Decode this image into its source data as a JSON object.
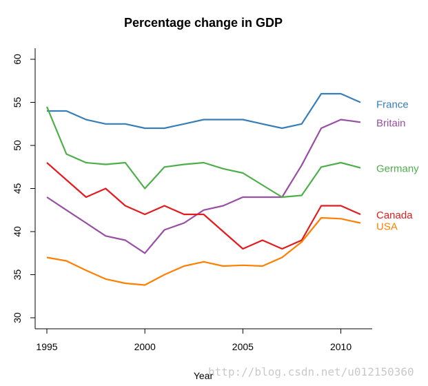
{
  "chart_data": {
    "type": "line",
    "title": "Percentage change in GDP",
    "xlabel": "Year",
    "ylabel": "",
    "xlim": [
      1995,
      2011
    ],
    "ylim": [
      30,
      60
    ],
    "xticks": [
      1995,
      2000,
      2005,
      2010
    ],
    "yticks": [
      30,
      35,
      40,
      45,
      50,
      55,
      60
    ],
    "x": [
      1995,
      1996,
      1997,
      1998,
      1999,
      2000,
      2001,
      2002,
      2003,
      2004,
      2005,
      2006,
      2007,
      2008,
      2009,
      2010,
      2011
    ],
    "series": [
      {
        "name": "France",
        "color": "#377eb8",
        "values": [
          54,
          54,
          53,
          52.5,
          52.5,
          52,
          52,
          52.5,
          53,
          53,
          53,
          52.5,
          52,
          52.5,
          56,
          56,
          55
        ]
      },
      {
        "name": "Britain",
        "color": "#984ea3",
        "values": [
          44,
          42.5,
          41,
          39.5,
          39,
          37.5,
          40.2,
          41,
          42.5,
          43,
          44,
          44,
          44,
          47.7,
          52,
          53,
          52.7
        ]
      },
      {
        "name": "Germany",
        "color": "#4daf4a",
        "values": [
          54.5,
          49,
          48,
          47.8,
          48,
          45,
          47.5,
          47.8,
          48,
          47.3,
          46.8,
          45.4,
          44,
          44.2,
          47.5,
          48,
          47.4
        ]
      },
      {
        "name": "Canada",
        "color": "#e41a1c",
        "values": [
          48,
          46,
          44,
          45,
          43,
          42,
          43,
          42,
          42,
          40,
          38,
          39,
          38,
          39,
          43,
          43,
          42
        ]
      },
      {
        "name": "USA",
        "color": "#ff7f00",
        "values": [
          37,
          36.6,
          35.5,
          34.5,
          34,
          33.8,
          35,
          36,
          36.5,
          36,
          36.1,
          36,
          37,
          38.8,
          41.6,
          41.5,
          41
        ]
      }
    ],
    "labels": [
      "France",
      "Britain",
      "Germany",
      "Canada",
      "USA"
    ]
  },
  "watermark": "http://blog.csdn.net/u012150360"
}
